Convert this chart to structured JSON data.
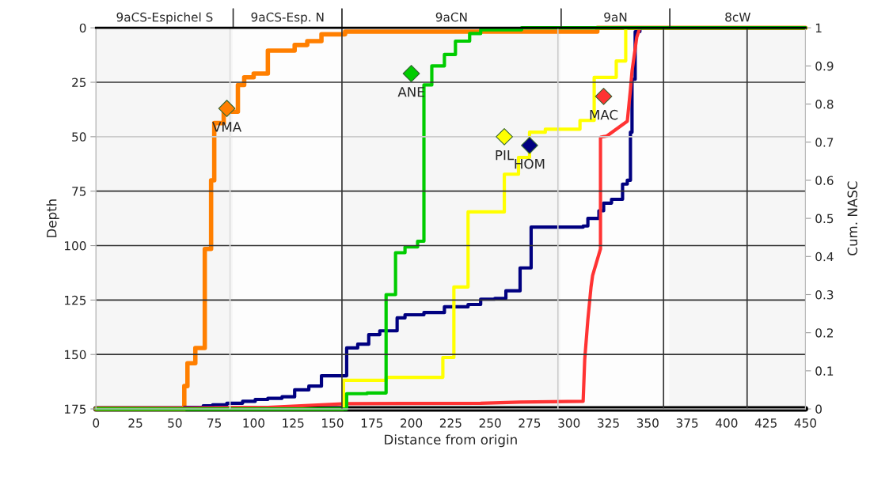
{
  "chart_data": {
    "type": "step",
    "xlabel": "Distance from origin",
    "ylabel": "Depth",
    "y2label": "Cum. NASC",
    "xlim": [
      0,
      450
    ],
    "xticks": [
      0,
      25,
      50,
      75,
      100,
      125,
      150,
      175,
      200,
      225,
      250,
      275,
      300,
      325,
      350,
      375,
      400,
      425,
      450
    ],
    "ylim": [
      175,
      0
    ],
    "yticks": [
      0,
      25,
      50,
      75,
      100,
      125,
      150,
      175
    ],
    "y2lim": [
      0,
      1
    ],
    "y2ticks": [
      0,
      0.1,
      0.2,
      0.3,
      0.4,
      0.5,
      0.6,
      0.7,
      0.8,
      0.9,
      1
    ],
    "bands": [
      {
        "axis": "x",
        "from": 0,
        "to": 87,
        "label": "9aCS-Espichel S",
        "color": "#f6f6f6"
      },
      {
        "axis": "x",
        "from": 87,
        "to": 156,
        "label": "9aCS-Esp. N",
        "color": "#fdfdfd"
      },
      {
        "axis": "x",
        "from": 156,
        "to": 295,
        "label": "9aCN",
        "color": "#f6f6f6"
      },
      {
        "axis": "x",
        "from": 295,
        "to": 364,
        "label": "9aN",
        "color": "#fdfdfd"
      },
      {
        "axis": "x",
        "from": 364,
        "to": 450,
        "label": "8cW",
        "color": "#f6f6f6"
      }
    ],
    "grid": false,
    "legend": false,
    "series": [
      {
        "axis": "y2",
        "color": "#000000",
        "x": [
          0,
          450
        ],
        "values": [
          0,
          0
        ]
      },
      {
        "type": "step",
        "axis": "y2",
        "color": "#ff7f00",
        "x": [
          0,
          56,
          58,
          63,
          69,
          73,
          75,
          81,
          90,
          94,
          100,
          109,
          126,
          134,
          143,
          158,
          318,
          450
        ],
        "values": [
          0,
          0.06,
          0.12,
          0.16,
          0.42,
          0.6,
          0.75,
          0.78,
          0.85,
          0.87,
          0.88,
          0.94,
          0.955,
          0.965,
          0.983,
          0.99,
          1,
          1
        ]
      },
      {
        "type": "step",
        "axis": "y2",
        "color": "#000080",
        "x": [
          0,
          56,
          68,
          74,
          83,
          93,
          101,
          109,
          118,
          126,
          135,
          143,
          159,
          166,
          173,
          180,
          191,
          196,
          208,
          221,
          236,
          244,
          253,
          260,
          269,
          276,
          309,
          312,
          319,
          322,
          327,
          334,
          337,
          339,
          340,
          342,
          345,
          450
        ],
        "values": [
          0,
          0.004,
          0.008,
          0.011,
          0.015,
          0.02,
          0.025,
          0.028,
          0.032,
          0.05,
          0.06,
          0.087,
          0.16,
          0.17,
          0.195,
          0.205,
          0.239,
          0.247,
          0.253,
          0.268,
          0.274,
          0.288,
          0.29,
          0.31,
          0.37,
          0.477,
          0.48,
          0.5,
          0.52,
          0.54,
          0.55,
          0.59,
          0.6,
          0.726,
          0.865,
          0.99,
          1,
          1
        ]
      },
      {
        "type": "line",
        "axis": "y2",
        "color": "#ff3333",
        "x": [
          0,
          109,
          143,
          159,
          244,
          269,
          309,
          310,
          312,
          314,
          315,
          320,
          320,
          324,
          337,
          339,
          340,
          343,
          345,
          450
        ],
        "values": [
          0,
          0.004,
          0.011,
          0.014,
          0.015,
          0.018,
          0.02,
          0.13,
          0.235,
          0.32,
          0.35,
          0.42,
          0.713,
          0.716,
          0.755,
          0.838,
          0.886,
          0.975,
          1,
          1
        ]
      },
      {
        "type": "step",
        "axis": "y2",
        "color": "#ffff00",
        "x": [
          0,
          157,
          184,
          220,
          227,
          236,
          259,
          268,
          275,
          285,
          307,
          316,
          330,
          336,
          450
        ],
        "values": [
          0,
          0.075,
          0.083,
          0.135,
          0.32,
          0.517,
          0.616,
          0.66,
          0.726,
          0.734,
          0.757,
          0.87,
          0.913,
          1,
          1
        ]
      },
      {
        "type": "step",
        "axis": "y2",
        "color": "#00cc00",
        "x": [
          0,
          159,
          172,
          184,
          190,
          196,
          204,
          208,
          213,
          221,
          228,
          237,
          244,
          270,
          450
        ],
        "values": [
          0,
          0.04,
          0.042,
          0.3,
          0.41,
          0.425,
          0.44,
          0.85,
          0.9,
          0.93,
          0.965,
          0.985,
          0.995,
          1,
          1
        ]
      },
      {
        "type": "scatter",
        "marker": "diamond",
        "name": "VMA",
        "x": [
          83
        ],
        "values": [
          37
        ],
        "color": "#ff7f00"
      },
      {
        "type": "scatter",
        "marker": "diamond",
        "name": "ANE",
        "x": [
          200
        ],
        "values": [
          21
        ],
        "color": "#00cc00"
      },
      {
        "type": "scatter",
        "marker": "diamond",
        "name": "MAC",
        "x": [
          322
        ],
        "values": [
          31.5
        ],
        "color": "#ff3333"
      },
      {
        "type": "scatter",
        "marker": "diamond",
        "name": "PIL",
        "x": [
          259
        ],
        "values": [
          50
        ],
        "color": "#ffff00"
      },
      {
        "type": "scatter",
        "marker": "diamond",
        "name": "HOM",
        "x": [
          275
        ],
        "values": [
          54
        ],
        "color": "#000080"
      }
    ],
    "ref_lines": [
      {
        "axis": "y",
        "value": 25,
        "color": "#333333"
      },
      {
        "axis": "y",
        "value": 50,
        "color": "#cccccc"
      },
      {
        "axis": "y",
        "value": 75,
        "color": "#333333"
      },
      {
        "axis": "y",
        "value": 100,
        "color": "#333333"
      },
      {
        "axis": "y",
        "value": 125,
        "color": "#333333"
      },
      {
        "axis": "y",
        "value": 150,
        "color": "#333333"
      },
      {
        "axis": "x",
        "value": 85,
        "color": "#dddddd"
      },
      {
        "axis": "x",
        "value": 156,
        "color": "#333333"
      },
      {
        "axis": "x",
        "value": 293,
        "color": "#cccccc"
      },
      {
        "axis": "x",
        "value": 360,
        "color": "#333333"
      },
      {
        "axis": "x",
        "value": 413,
        "color": "#333333"
      }
    ]
  }
}
